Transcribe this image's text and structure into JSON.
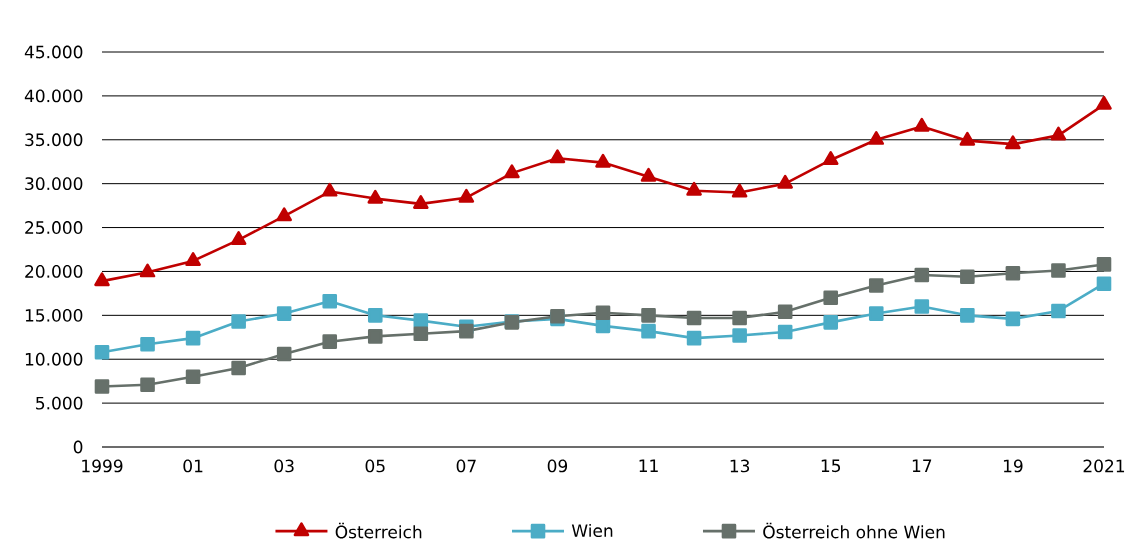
{
  "chart_data": {
    "type": "line",
    "x": [
      1999,
      2000,
      2001,
      2002,
      2003,
      2004,
      2005,
      2006,
      2007,
      2008,
      2009,
      2010,
      2011,
      2012,
      2013,
      2014,
      2015,
      2016,
      2017,
      2018,
      2019,
      2020,
      2021
    ],
    "xlim": [
      1999,
      2021
    ],
    "xticks": [
      1999,
      {
        "value": 2001,
        "label": "01"
      },
      {
        "value": 2003,
        "label": "03"
      },
      {
        "value": 2005,
        "label": "05"
      },
      {
        "value": 2007,
        "label": "07"
      },
      {
        "value": 2009,
        "label": "09"
      },
      {
        "value": 2011,
        "label": "11"
      },
      {
        "value": 2013,
        "label": "13"
      },
      {
        "value": 2015,
        "label": "15"
      },
      {
        "value": 2017,
        "label": "17"
      },
      {
        "value": 2019,
        "label": "19"
      },
      2021
    ],
    "ylim": [
      0,
      45000
    ],
    "yticks": [
      0,
      {
        "value": 5000,
        "label": "5.000"
      },
      {
        "value": 10000,
        "label": "10.000"
      },
      {
        "value": 15000,
        "label": "15.000"
      },
      {
        "value": 20000,
        "label": "20.000"
      },
      {
        "value": 25000,
        "label": "25.000"
      },
      {
        "value": 30000,
        "label": "30.000"
      },
      {
        "value": 35000,
        "label": "35.000"
      },
      {
        "value": 40000,
        "label": "40.000"
      },
      {
        "value": 45000,
        "label": "45.000"
      }
    ],
    "grid": "y",
    "legend": "bottom",
    "line_style": "solid",
    "series": [
      {
        "name": "Österreich",
        "color": "#c00000",
        "marker": "triangle",
        "values": [
          18900,
          19900,
          21200,
          23600,
          26300,
          29100,
          28300,
          27700,
          28400,
          31200,
          32900,
          32400,
          30800,
          29200,
          29000,
          30000,
          32700,
          35000,
          36500,
          34900,
          34500,
          35500,
          39000
        ]
      },
      {
        "name": "Wien",
        "color": "#4bacc6",
        "marker": "square",
        "values": [
          10800,
          11700,
          12400,
          14300,
          15200,
          16600,
          15000,
          14400,
          13700,
          14300,
          14600,
          13800,
          13200,
          12400,
          12700,
          13100,
          14200,
          15200,
          16000,
          15000,
          14600,
          15500,
          18600
        ]
      },
      {
        "name": "Österreich ohne Wien",
        "color": "#66706a",
        "marker": "square",
        "values": [
          6900,
          7100,
          8000,
          9000,
          10600,
          12000,
          12600,
          12900,
          13200,
          14200,
          14900,
          15300,
          15000,
          14700,
          14700,
          15400,
          17000,
          18400,
          19600,
          19400,
          19800,
          20100,
          20800
        ]
      }
    ]
  }
}
